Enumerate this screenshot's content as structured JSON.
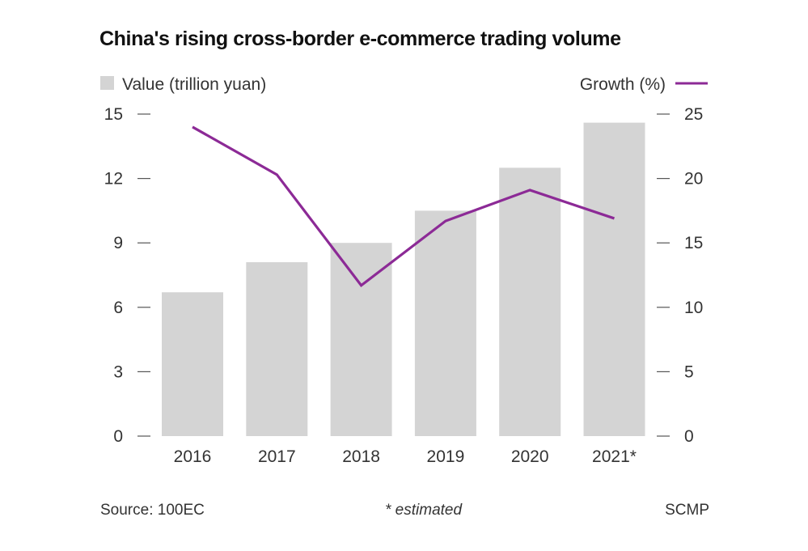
{
  "title": "China's rising cross-border e-commerce trading volume",
  "chart_data": {
    "type": "bar+line",
    "categories": [
      "2016",
      "2017",
      "2018",
      "2019",
      "2020",
      "2021*"
    ],
    "series": [
      {
        "name": "Value (trillion yuan)",
        "type": "bar",
        "axis": "left",
        "values": [
          6.7,
          8.1,
          9.0,
          10.5,
          12.5,
          14.6
        ],
        "color": "#d4d4d4"
      },
      {
        "name": "Growth (%)",
        "type": "line",
        "axis": "right",
        "values": [
          24.0,
          20.3,
          11.7,
          16.7,
          19.1,
          16.9
        ],
        "color": "#8c2a96"
      }
    ],
    "left_axis": {
      "ticks": [
        "0",
        "3",
        "6",
        "9",
        "12",
        "15"
      ],
      "ylim": [
        0,
        15
      ]
    },
    "right_axis": {
      "ticks": [
        "0",
        "5",
        "10",
        "15",
        "20",
        "25"
      ],
      "ylim": [
        0,
        25
      ]
    },
    "grid": false,
    "legend_left": "Value (trillion yuan)",
    "legend_right": "Growth (%)"
  },
  "footer": {
    "source": "Source: 100EC",
    "note": "* estimated",
    "credit": "SCMP"
  }
}
